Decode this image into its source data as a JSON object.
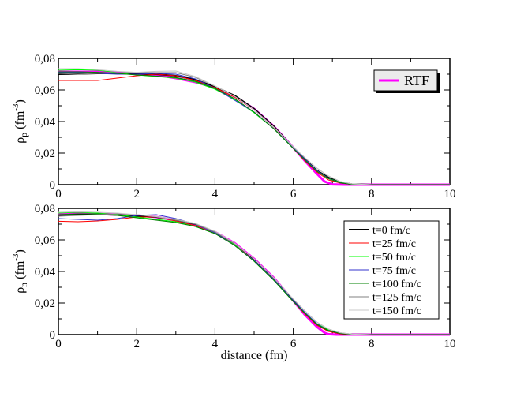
{
  "chart_data": [
    {
      "type": "line",
      "ylabel": "ρ",
      "ylabel_sub": "p",
      "ylabel_unit": "(fm",
      "ylabel_unit_sup": "-3",
      "ylabel_unit_close": ")",
      "xlabel": "",
      "xlim": [
        0,
        10
      ],
      "ylim": [
        0,
        0.08
      ],
      "xticks": [
        "0",
        "2",
        "4",
        "6",
        "8",
        "10"
      ],
      "yticks": [
        "0",
        "0,02",
        "0,04",
        "0,06",
        "0,08"
      ],
      "legend": {
        "placement": "top-right",
        "entries": [
          "RTF"
        ]
      },
      "series": [
        {
          "name": "RTF",
          "color": "#ff00ff",
          "width": 3,
          "x": [
            0,
            1,
            2,
            2.5,
            3,
            3.5,
            4,
            4.5,
            5,
            5.5,
            6,
            6.3,
            6.6,
            6.8,
            7,
            7.3,
            10
          ],
          "y": [
            0.0715,
            0.0715,
            0.0705,
            0.0695,
            0.0675,
            0.065,
            0.0615,
            0.056,
            0.048,
            0.037,
            0.0235,
            0.015,
            0.007,
            0.002,
            0.0002,
            0,
            0
          ]
        },
        {
          "color": "#000000",
          "width": 2,
          "x": [
            0,
            0.5,
            1,
            1.5,
            2,
            2.5,
            3,
            3.5,
            4,
            4.5,
            5,
            5.5,
            6,
            6.3,
            6.6,
            6.9,
            7.2,
            7.5,
            8,
            10
          ],
          "y": [
            0.07,
            0.0702,
            0.0705,
            0.0705,
            0.0703,
            0.07,
            0.069,
            0.0665,
            0.062,
            0.0565,
            0.048,
            0.037,
            0.0235,
            0.016,
            0.009,
            0.0045,
            0.0015,
            0.0003,
            0,
            0
          ]
        },
        {
          "color": "#ff0000",
          "width": 1,
          "x": [
            0,
            0.5,
            1,
            1.5,
            2,
            2.5,
            3,
            3.5,
            4,
            4.5,
            5,
            5.5,
            6,
            6.3,
            6.6,
            6.9,
            7.2,
            7.5,
            8,
            10
          ],
          "y": [
            0.066,
            0.066,
            0.066,
            0.0675,
            0.069,
            0.07,
            0.069,
            0.066,
            0.0615,
            0.0555,
            0.0475,
            0.0365,
            0.023,
            0.015,
            0.008,
            0.003,
            0.001,
            0.0002,
            0,
            0
          ]
        },
        {
          "color": "#00ff00",
          "width": 1,
          "x": [
            0,
            0.5,
            1,
            1.5,
            2,
            2.5,
            3,
            3.5,
            4,
            4.5,
            5,
            5.5,
            6,
            6.3,
            6.6,
            6.9,
            7.2,
            7.5,
            8,
            10
          ],
          "y": [
            0.0725,
            0.0728,
            0.0725,
            0.071,
            0.0695,
            0.0685,
            0.0675,
            0.065,
            0.0605,
            0.054,
            0.0455,
            0.0355,
            0.023,
            0.0155,
            0.009,
            0.004,
            0.0015,
            0.0003,
            0,
            0
          ]
        },
        {
          "color": "#3333cc",
          "width": 1,
          "x": [
            0,
            0.5,
            1,
            1.5,
            2,
            2.5,
            3,
            3.5,
            4,
            4.5,
            5,
            5.5,
            6,
            6.3,
            6.6,
            6.9,
            7.2,
            7.5,
            8,
            10
          ],
          "y": [
            0.071,
            0.0712,
            0.0705,
            0.07,
            0.07,
            0.0705,
            0.07,
            0.067,
            0.061,
            0.0535,
            0.046,
            0.0355,
            0.0235,
            0.016,
            0.009,
            0.004,
            0.0012,
            0.0002,
            0,
            0
          ]
        },
        {
          "color": "#008000",
          "width": 1,
          "x": [
            0,
            0.5,
            1,
            1.5,
            2,
            2.5,
            3,
            3.5,
            4,
            4.5,
            5,
            5.5,
            6,
            6.3,
            6.6,
            6.9,
            7.2,
            7.5,
            8,
            10
          ],
          "y": [
            0.0715,
            0.0715,
            0.0712,
            0.0705,
            0.0695,
            0.0688,
            0.0678,
            0.0655,
            0.061,
            0.0545,
            0.046,
            0.0355,
            0.023,
            0.0155,
            0.0085,
            0.0038,
            0.0012,
            0.0002,
            0,
            0
          ]
        },
        {
          "color": "#808080",
          "width": 1,
          "x": [
            0,
            0.5,
            1,
            1.5,
            2,
            2.5,
            3,
            3.5,
            4,
            4.5,
            5,
            5.5,
            6,
            6.3,
            6.6,
            6.9,
            7.2,
            7.5,
            8,
            10
          ],
          "y": [
            0.0705,
            0.07,
            0.0705,
            0.071,
            0.071,
            0.071,
            0.071,
            0.068,
            0.0625,
            0.056,
            0.0475,
            0.0365,
            0.024,
            0.017,
            0.0105,
            0.0055,
            0.002,
            0.0005,
            0,
            0
          ]
        },
        {
          "color": "#c8c8c8",
          "width": 1,
          "x": [
            0,
            0.5,
            1,
            1.5,
            2,
            2.5,
            3,
            3.5,
            4,
            4.5,
            5,
            5.5,
            6,
            6.3,
            6.6,
            6.9,
            7.2,
            7.5,
            8,
            10
          ],
          "y": [
            0.0735,
            0.0735,
            0.0728,
            0.0718,
            0.0712,
            0.0718,
            0.072,
            0.0685,
            0.0625,
            0.056,
            0.0475,
            0.0365,
            0.024,
            0.017,
            0.0105,
            0.0055,
            0.002,
            0.0005,
            0,
            0
          ]
        }
      ]
    },
    {
      "type": "line",
      "ylabel": "ρ",
      "ylabel_sub": "n",
      "ylabel_unit": "(fm",
      "ylabel_unit_sup": "-3",
      "ylabel_unit_close": ")",
      "xlabel": "distance (fm)",
      "xlim": [
        0,
        10
      ],
      "ylim": [
        0,
        0.08
      ],
      "xticks": [
        "0",
        "2",
        "4",
        "6",
        "8",
        "10"
      ],
      "yticks": [
        "0",
        "0,02",
        "0,04",
        "0,06",
        "0,08"
      ],
      "legend": {
        "placement": "top-right",
        "entries": [
          "t=0 fm/c",
          "t=25 fm/c",
          "t=50 fm/c",
          "t=75 fm/c",
          "t=100 fm/c",
          "t=125 fm/c",
          "t=150 fm/c"
        ]
      },
      "series": [
        {
          "color": "#ff00ff",
          "width": 3,
          "x": [
            0,
            1,
            2,
            2.5,
            3,
            3.5,
            4,
            4.5,
            5,
            5.5,
            6,
            6.3,
            6.6,
            6.8,
            6.9,
            7.1,
            10
          ],
          "y": [
            0.0765,
            0.0765,
            0.0755,
            0.0745,
            0.0725,
            0.0695,
            0.065,
            0.058,
            0.048,
            0.036,
            0.0215,
            0.0125,
            0.005,
            0.0012,
            0.0003,
            0,
            0
          ]
        },
        {
          "name": "t=0 fm/c",
          "color": "#000000",
          "width": 2,
          "x": [
            0,
            0.5,
            1,
            1.5,
            2,
            2.5,
            3,
            3.5,
            4,
            4.5,
            5,
            5.5,
            6,
            6.3,
            6.6,
            6.9,
            7.2,
            7.5,
            8,
            10
          ],
          "y": [
            0.0755,
            0.076,
            0.0762,
            0.0758,
            0.075,
            0.0745,
            0.0725,
            0.07,
            0.065,
            0.0575,
            0.0475,
            0.0355,
            0.0215,
            0.0135,
            0.0065,
            0.0025,
            0.0007,
            0.0001,
            0,
            0
          ]
        },
        {
          "name": "t=25 fm/c",
          "color": "#ff0000",
          "width": 1,
          "x": [
            0,
            0.5,
            1,
            1.5,
            2,
            2.5,
            3,
            3.5,
            4,
            4.5,
            5,
            5.5,
            6,
            6.3,
            6.6,
            6.9,
            7.2,
            7.5,
            8,
            10
          ],
          "y": [
            0.0718,
            0.0715,
            0.072,
            0.073,
            0.0745,
            0.0745,
            0.072,
            0.069,
            0.064,
            0.057,
            0.047,
            0.035,
            0.021,
            0.013,
            0.006,
            0.002,
            0.0005,
            0.0001,
            0,
            0
          ]
        },
        {
          "name": "t=50 fm/c",
          "color": "#00ff00",
          "width": 1,
          "x": [
            0,
            0.5,
            1,
            1.5,
            2,
            2.5,
            3,
            3.5,
            4,
            4.5,
            5,
            5.5,
            6,
            6.3,
            6.6,
            6.9,
            7.2,
            7.5,
            8,
            10
          ],
          "y": [
            0.077,
            0.0775,
            0.077,
            0.076,
            0.0745,
            0.073,
            0.0715,
            0.0685,
            0.064,
            0.057,
            0.0465,
            0.0345,
            0.021,
            0.0135,
            0.007,
            0.003,
            0.001,
            0.0002,
            0,
            0
          ]
        },
        {
          "name": "t=75 fm/c",
          "color": "#3333cc",
          "width": 1,
          "x": [
            0,
            0.5,
            1,
            1.5,
            2,
            2.5,
            3,
            3.5,
            4,
            4.5,
            5,
            5.5,
            6,
            6.3,
            6.6,
            6.9,
            7.2,
            7.5,
            8,
            10
          ],
          "y": [
            0.0735,
            0.073,
            0.0725,
            0.0735,
            0.0755,
            0.076,
            0.0735,
            0.07,
            0.0645,
            0.0565,
            0.047,
            0.035,
            0.0215,
            0.014,
            0.007,
            0.0025,
            0.0008,
            0.0001,
            0,
            0
          ]
        },
        {
          "name": "t=100 fm/c",
          "color": "#008000",
          "width": 1,
          "x": [
            0,
            0.5,
            1,
            1.5,
            2,
            2.5,
            3,
            3.5,
            4,
            4.5,
            5,
            5.5,
            6,
            6.3,
            6.6,
            6.9,
            7.2,
            7.5,
            8,
            10
          ],
          "y": [
            0.076,
            0.0765,
            0.0765,
            0.0755,
            0.074,
            0.0725,
            0.071,
            0.0685,
            0.064,
            0.0565,
            0.0465,
            0.0345,
            0.021,
            0.0135,
            0.0065,
            0.0025,
            0.0008,
            0.0001,
            0,
            0
          ]
        },
        {
          "name": "t=125 fm/c",
          "color": "#808080",
          "width": 1,
          "x": [
            0,
            0.5,
            1,
            1.5,
            2,
            2.5,
            3,
            3.5,
            4,
            4.5,
            5,
            5.5,
            6,
            6.3,
            6.6,
            6.9,
            7.2,
            7.5,
            8,
            10
          ],
          "y": [
            0.075,
            0.0755,
            0.076,
            0.0765,
            0.076,
            0.0745,
            0.0725,
            0.07,
            0.065,
            0.0575,
            0.048,
            0.036,
            0.0225,
            0.015,
            0.008,
            0.0035,
            0.0012,
            0.0003,
            0,
            0
          ]
        },
        {
          "name": "t=150 fm/c",
          "color": "#c8c8c8",
          "width": 1,
          "x": [
            0,
            0.5,
            1,
            1.5,
            2,
            2.5,
            3,
            3.5,
            4,
            4.5,
            5,
            5.5,
            6,
            6.3,
            6.6,
            6.9,
            7.2,
            7.5,
            8,
            10
          ],
          "y": [
            0.0775,
            0.0778,
            0.0775,
            0.077,
            0.076,
            0.0748,
            0.073,
            0.0705,
            0.0655,
            0.058,
            0.048,
            0.036,
            0.0225,
            0.015,
            0.008,
            0.0035,
            0.0012,
            0.0003,
            0,
            0
          ]
        }
      ]
    }
  ]
}
